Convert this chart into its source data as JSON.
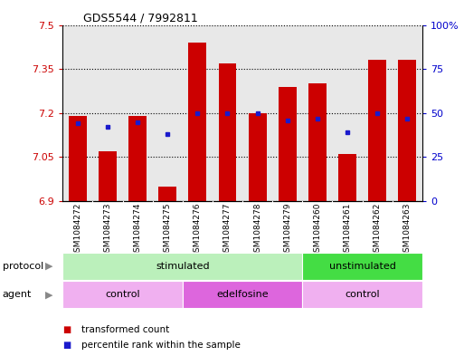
{
  "title": "GDS5544 / 7992811",
  "samples": [
    "GSM1084272",
    "GSM1084273",
    "GSM1084274",
    "GSM1084275",
    "GSM1084276",
    "GSM1084277",
    "GSM1084278",
    "GSM1084279",
    "GSM1084260",
    "GSM1084261",
    "GSM1084262",
    "GSM1084263"
  ],
  "transformed_count": [
    7.19,
    7.07,
    7.19,
    6.95,
    7.44,
    7.37,
    7.2,
    7.29,
    7.3,
    7.06,
    7.38,
    7.38
  ],
  "percentile_rank": [
    44,
    42,
    45,
    38,
    50,
    50,
    50,
    46,
    47,
    39,
    50,
    47
  ],
  "bar_bottom": 6.9,
  "ylim_left": [
    6.9,
    7.5
  ],
  "ylim_right": [
    0,
    100
  ],
  "yticks_left": [
    6.9,
    7.05,
    7.2,
    7.35,
    7.5
  ],
  "yticks_right": [
    0,
    25,
    50,
    75,
    100
  ],
  "ytick_labels_left": [
    "6.9",
    "7.05",
    "7.2",
    "7.35",
    "7.5"
  ],
  "ytick_labels_right": [
    "0",
    "25",
    "50",
    "75",
    "100%"
  ],
  "bar_color": "#cc0000",
  "blue_color": "#1a1acc",
  "plot_bg_color": "#e8e8e8",
  "xtick_bg_color": "#d0d0d0",
  "protocol_groups": [
    {
      "label": "stimulated",
      "start": 0,
      "end": 8,
      "color": "#bbf0bb"
    },
    {
      "label": "unstimulated",
      "start": 8,
      "end": 12,
      "color": "#44dd44"
    }
  ],
  "agent_groups": [
    {
      "label": "control",
      "start": 0,
      "end": 4,
      "color": "#f0b0f0"
    },
    {
      "label": "edelfosine",
      "start": 4,
      "end": 8,
      "color": "#dd66dd"
    },
    {
      "label": "control",
      "start": 8,
      "end": 12,
      "color": "#f0b0f0"
    }
  ],
  "legend_items": [
    {
      "label": "transformed count",
      "color": "#cc0000"
    },
    {
      "label": "percentile rank within the sample",
      "color": "#1a1acc"
    }
  ],
  "bg_color": "#ffffff",
  "left_color": "#cc0000",
  "right_color": "#0000cc"
}
